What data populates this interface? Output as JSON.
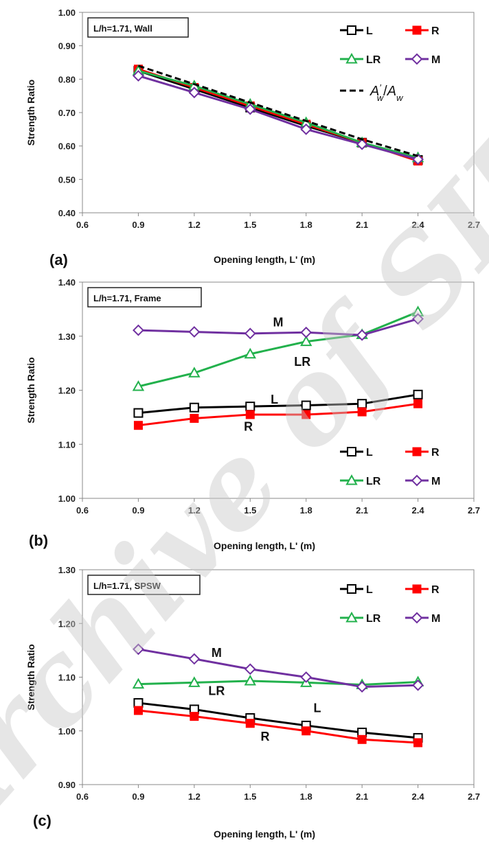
{
  "watermark": "Archive of SID",
  "chart_data": [
    {
      "type": "line",
      "panel_label": "(a)",
      "box_label": "L/h=1.71, Wall",
      "xlabel": "Opening length, L' (m)",
      "ylabel": "Strength Ratio",
      "xlim": [
        0.6,
        2.7
      ],
      "ylim": [
        0.4,
        1.0
      ],
      "xticks": [
        "0.6",
        "0.9",
        "1.2",
        "1.5",
        "1.8",
        "2.1",
        "2.4",
        "2.7"
      ],
      "yticks": [
        "0.40",
        "0.50",
        "0.60",
        "0.70",
        "0.80",
        "0.90",
        "1.00"
      ],
      "x": [
        0.9,
        1.2,
        1.5,
        1.8,
        2.1,
        2.4
      ],
      "series": [
        {
          "name": "L",
          "values": [
            0.825,
            0.77,
            0.715,
            0.66,
            0.61,
            0.558
          ],
          "color": "#000000",
          "marker": "square-open"
        },
        {
          "name": "R",
          "values": [
            0.83,
            0.775,
            0.72,
            0.665,
            0.61,
            0.555
          ],
          "color": "#ff0000",
          "marker": "square-filled"
        },
        {
          "name": "LR",
          "values": [
            0.825,
            0.78,
            0.725,
            0.67,
            0.61,
            0.565
          ],
          "color": "#22b14c",
          "marker": "triangle-open"
        },
        {
          "name": "M",
          "values": [
            0.81,
            0.76,
            0.71,
            0.65,
            0.605,
            0.56
          ],
          "color": "#7030a0",
          "marker": "diamond-open"
        },
        {
          "name": "A'w/Aw",
          "values": [
            0.84,
            0.785,
            0.73,
            0.675,
            0.62,
            0.57
          ],
          "color": "#000000",
          "marker": "none",
          "dashed": true
        }
      ],
      "legend_entries": [
        "L",
        "R",
        "LR",
        "M"
      ],
      "legend_formula": {
        "base": "A",
        "sup": "′",
        "sub": "w",
        "slash": "/",
        "base2": "A",
        "sub2": "w"
      },
      "legend_position": "top-right",
      "annotations": [],
      "grid": false
    },
    {
      "type": "line",
      "panel_label": "(b)",
      "box_label": "L/h=1.71, Frame",
      "xlabel": "Opening length, L' (m)",
      "ylabel": "Strength Ratio",
      "xlim": [
        0.6,
        2.7
      ],
      "ylim": [
        1.0,
        1.4
      ],
      "xticks": [
        "0.6",
        "0.9",
        "1.2",
        "1.5",
        "1.8",
        "2.1",
        "2.4",
        "2.7"
      ],
      "yticks": [
        "1.00",
        "1.10",
        "1.20",
        "1.30",
        "1.40"
      ],
      "x": [
        0.9,
        1.2,
        1.5,
        1.8,
        2.1,
        2.4
      ],
      "series": [
        {
          "name": "L",
          "values": [
            1.158,
            1.168,
            1.17,
            1.172,
            1.175,
            1.192
          ],
          "color": "#000000",
          "marker": "square-open"
        },
        {
          "name": "R",
          "values": [
            1.135,
            1.148,
            1.155,
            1.155,
            1.16,
            1.175
          ],
          "color": "#ff0000",
          "marker": "square-filled"
        },
        {
          "name": "LR",
          "values": [
            1.207,
            1.232,
            1.267,
            1.29,
            1.303,
            1.345
          ],
          "color": "#22b14c",
          "marker": "triangle-open"
        },
        {
          "name": "M",
          "values": [
            1.311,
            1.308,
            1.305,
            1.307,
            1.302,
            1.332
          ],
          "color": "#7030a0",
          "marker": "diamond-open"
        }
      ],
      "legend_entries": [
        "L",
        "R",
        "LR",
        "M"
      ],
      "legend_position": "bottom-right",
      "annotations": [
        {
          "text": "M",
          "x": 1.65,
          "y": 1.318
        },
        {
          "text": "LR",
          "x": 1.78,
          "y": 1.245
        },
        {
          "text": "L",
          "x": 1.63,
          "y": 1.175
        },
        {
          "text": "R",
          "x": 1.49,
          "y": 1.125
        }
      ],
      "grid": false
    },
    {
      "type": "line",
      "panel_label": "(c)",
      "box_label": "L/h=1.71, SPSW",
      "xlabel": "Opening length, L' (m)",
      "ylabel": "Strength Ratio",
      "xlim": [
        0.6,
        2.7
      ],
      "ylim": [
        0.9,
        1.3
      ],
      "xticks": [
        "0.6",
        "0.9",
        "1.2",
        "1.5",
        "1.8",
        "2.1",
        "2.4",
        "2.7"
      ],
      "yticks": [
        "0.90",
        "1.00",
        "1.10",
        "1.20",
        "1.30"
      ],
      "x": [
        0.9,
        1.2,
        1.5,
        1.8,
        2.1,
        2.4
      ],
      "series": [
        {
          "name": "L",
          "values": [
            1.052,
            1.04,
            1.024,
            1.01,
            0.997,
            0.987
          ],
          "color": "#000000",
          "marker": "square-open"
        },
        {
          "name": "R",
          "values": [
            1.038,
            1.027,
            1.014,
            1.0,
            0.984,
            0.978
          ],
          "color": "#ff0000",
          "marker": "square-filled"
        },
        {
          "name": "LR",
          "values": [
            1.087,
            1.09,
            1.093,
            1.09,
            1.086,
            1.091
          ],
          "color": "#22b14c",
          "marker": "triangle-open"
        },
        {
          "name": "M",
          "values": [
            1.152,
            1.134,
            1.115,
            1.1,
            1.082,
            1.085
          ],
          "color": "#7030a0",
          "marker": "diamond-open"
        }
      ],
      "legend_entries": [
        "L",
        "R",
        "LR",
        "M"
      ],
      "legend_position": "top-right",
      "annotations": [
        {
          "text": "M",
          "x": 1.32,
          "y": 1.138
        },
        {
          "text": "LR",
          "x": 1.32,
          "y": 1.067
        },
        {
          "text": "L",
          "x": 1.86,
          "y": 1.035
        },
        {
          "text": "R",
          "x": 1.58,
          "y": 0.982
        }
      ],
      "grid": false
    }
  ]
}
